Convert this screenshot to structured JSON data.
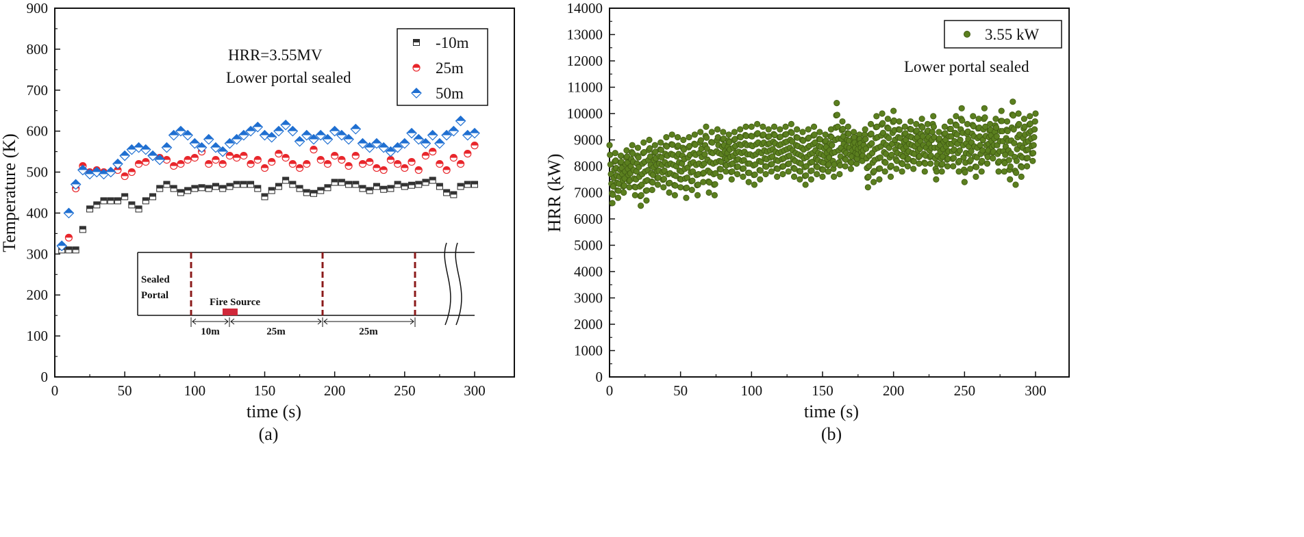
{
  "chart_data": [
    {
      "type": "scatter",
      "panel_label": "(a)",
      "xlabel": "time (s)",
      "ylabel": "Temperature (K)",
      "xlim": [
        0,
        320
      ],
      "ylim": [
        0,
        900
      ],
      "xticks": [
        0,
        50,
        100,
        150,
        200,
        250,
        300
      ],
      "yticks": [
        0,
        100,
        200,
        300,
        400,
        500,
        600,
        700,
        800,
        900
      ],
      "grid": false,
      "legend_position": "top-right",
      "annotations": [
        "HRR=3.55MV",
        "Lower portal sealed"
      ],
      "x": [
        5,
        10,
        15,
        20,
        25,
        30,
        35,
        40,
        45,
        50,
        55,
        60,
        65,
        70,
        75,
        80,
        85,
        90,
        95,
        100,
        105,
        110,
        115,
        120,
        125,
        130,
        135,
        140,
        145,
        150,
        155,
        160,
        165,
        170,
        175,
        180,
        185,
        190,
        195,
        200,
        205,
        210,
        215,
        220,
        225,
        230,
        235,
        240,
        245,
        250,
        255,
        260,
        265,
        270,
        275,
        280,
        285,
        290,
        295,
        300
      ],
      "series": [
        {
          "name": "-10m",
          "color": "#333333",
          "marker": "square",
          "values": [
            310,
            310,
            310,
            360,
            410,
            420,
            430,
            430,
            430,
            440,
            420,
            410,
            430,
            440,
            460,
            470,
            460,
            450,
            455,
            460,
            462,
            460,
            465,
            460,
            465,
            470,
            470,
            470,
            460,
            440,
            455,
            465,
            480,
            470,
            460,
            450,
            448,
            455,
            462,
            475,
            475,
            470,
            470,
            460,
            455,
            465,
            458,
            460,
            470,
            465,
            468,
            470,
            475,
            480,
            465,
            450,
            445,
            465,
            470,
            470
          ]
        },
        {
          "name": "25m",
          "color": "#e8262b",
          "marker": "circle",
          "values": [
            320,
            340,
            460,
            515,
            500,
            505,
            500,
            500,
            505,
            490,
            500,
            520,
            525,
            540,
            535,
            530,
            515,
            520,
            530,
            535,
            550,
            520,
            530,
            520,
            540,
            535,
            540,
            520,
            530,
            510,
            525,
            545,
            535,
            520,
            510,
            520,
            555,
            530,
            520,
            540,
            530,
            515,
            540,
            520,
            525,
            510,
            505,
            530,
            520,
            510,
            525,
            505,
            540,
            550,
            520,
            505,
            535,
            520,
            545,
            565
          ]
        },
        {
          "name": "50m",
          "color": "#1f6fd1",
          "marker": "diamond",
          "values": [
            320,
            400,
            470,
            505,
            495,
            500,
            495,
            500,
            520,
            540,
            555,
            560,
            555,
            540,
            530,
            560,
            590,
            600,
            590,
            570,
            560,
            580,
            560,
            550,
            570,
            580,
            590,
            600,
            610,
            590,
            585,
            600,
            615,
            600,
            575,
            590,
            580,
            590,
            580,
            600,
            590,
            580,
            605,
            570,
            560,
            570,
            560,
            550,
            560,
            570,
            595,
            580,
            570,
            590,
            570,
            590,
            600,
            625,
            590,
            595
          ]
        }
      ],
      "inset": {
        "sealed_portal": "Sealed\nPortal",
        "sealed_line1": "Sealed",
        "sealed_line2": "Portal",
        "fire_source": "Fire Source",
        "dimensions": [
          "10m",
          "25m",
          "25m"
        ],
        "dash_color": "#8b1a1a",
        "fire_color": "#d0283a"
      }
    },
    {
      "type": "scatter",
      "panel_label": "(b)",
      "xlabel": "time (s)",
      "ylabel": "HRR (kW)",
      "xlim": [
        0,
        320
      ],
      "ylim": [
        0,
        14000
      ],
      "xticks": [
        0,
        50,
        100,
        150,
        200,
        250,
        300
      ],
      "yticks": [
        0,
        1000,
        2000,
        3000,
        4000,
        5000,
        6000,
        7000,
        8000,
        9000,
        10000,
        11000,
        12000,
        13000,
        14000
      ],
      "grid": false,
      "legend_position": "top-right",
      "annotations": [
        "Lower portal sealed"
      ],
      "x_step": 2,
      "series": [
        {
          "name": "3.55 kW",
          "color": "#5b7f1f",
          "marker": "sphere",
          "values": [
            8800,
            6600,
            8500,
            6800,
            8400,
            7000,
            8600,
            7200,
            8800,
            6900,
            8700,
            6500,
            8900,
            6700,
            9000,
            7100,
            8800,
            7300,
            8900,
            7200,
            9100,
            7000,
            9200,
            6900,
            9100,
            7200,
            9000,
            6800,
            9100,
            7100,
            9200,
            6900,
            9300,
            7400,
            9500,
            7000,
            9300,
            6900,
            9400,
            7600,
            9300,
            7800,
            9200,
            7500,
            9300,
            7700,
            9400,
            7600,
            9500,
            7400,
            9500,
            7300,
            9600,
            7500,
            9500,
            7700,
            9400,
            7800,
            9500,
            7600,
            9400,
            7700,
            9500,
            7800,
            9600,
            7600,
            9400,
            7500,
            9300,
            7300,
            9400,
            7500,
            9500,
            7700,
            9300,
            7600,
            9200,
            7800,
            9400,
            7600,
            10400,
            7700,
            9700,
            8000,
            9500,
            7900,
            9300,
            8100,
            9200,
            8200,
            9400,
            7200,
            9600,
            7400,
            9900,
            7500,
            10000,
            7800,
            9800,
            7600,
            10100,
            7900,
            9700,
            7800,
            9500,
            8000,
            9700,
            7900,
            9600,
            8100,
            9800,
            7800,
            9600,
            8100,
            9900,
            7500,
            9300,
            7800,
            9500,
            8000,
            9700,
            8000,
            9900,
            7800,
            10200,
            7400,
            9600,
            7900,
            9900,
            7600,
            9800,
            7800,
            10200,
            8100,
            9600,
            8300,
            9800,
            7800,
            10100,
            7800,
            9700,
            7500,
            10450,
            7300,
            10000,
            7600,
            9800,
            8000,
            9900,
            8200,
            10000
          ]
        }
      ]
    }
  ]
}
